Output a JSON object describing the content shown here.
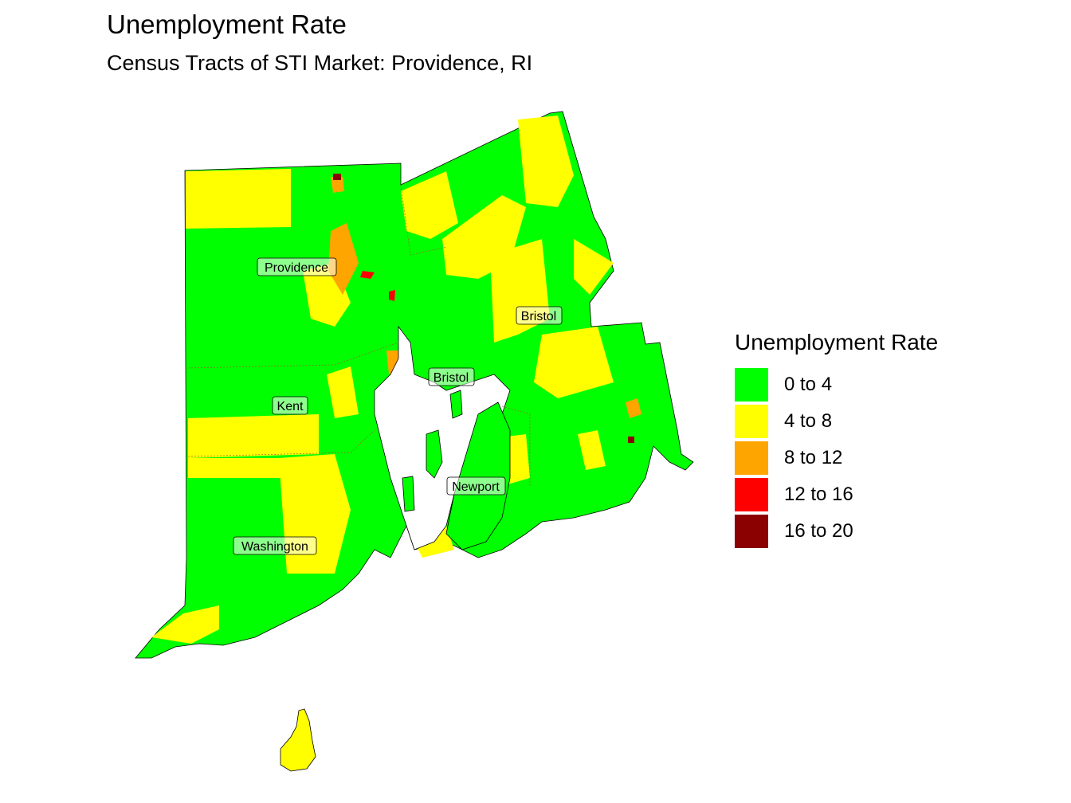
{
  "title": "Unemployment Rate",
  "subtitle": "Census Tracts of STI Market: Providence, RI",
  "legend": {
    "title": "Unemployment Rate",
    "items": [
      {
        "label": "0 to 4",
        "color": "#00ff00"
      },
      {
        "label": "4 to 8",
        "color": "#ffff00"
      },
      {
        "label": "8 to 12",
        "color": "#ffa500"
      },
      {
        "label": "12 to 16",
        "color": "#ff0000"
      },
      {
        "label": "16 to 20",
        "color": "#8b0000"
      }
    ]
  },
  "counties": [
    {
      "name": "Providence"
    },
    {
      "name": "Bristol"
    },
    {
      "name": "Bristol"
    },
    {
      "name": "Kent"
    },
    {
      "name": "Newport"
    },
    {
      "name": "Washington"
    }
  ]
}
